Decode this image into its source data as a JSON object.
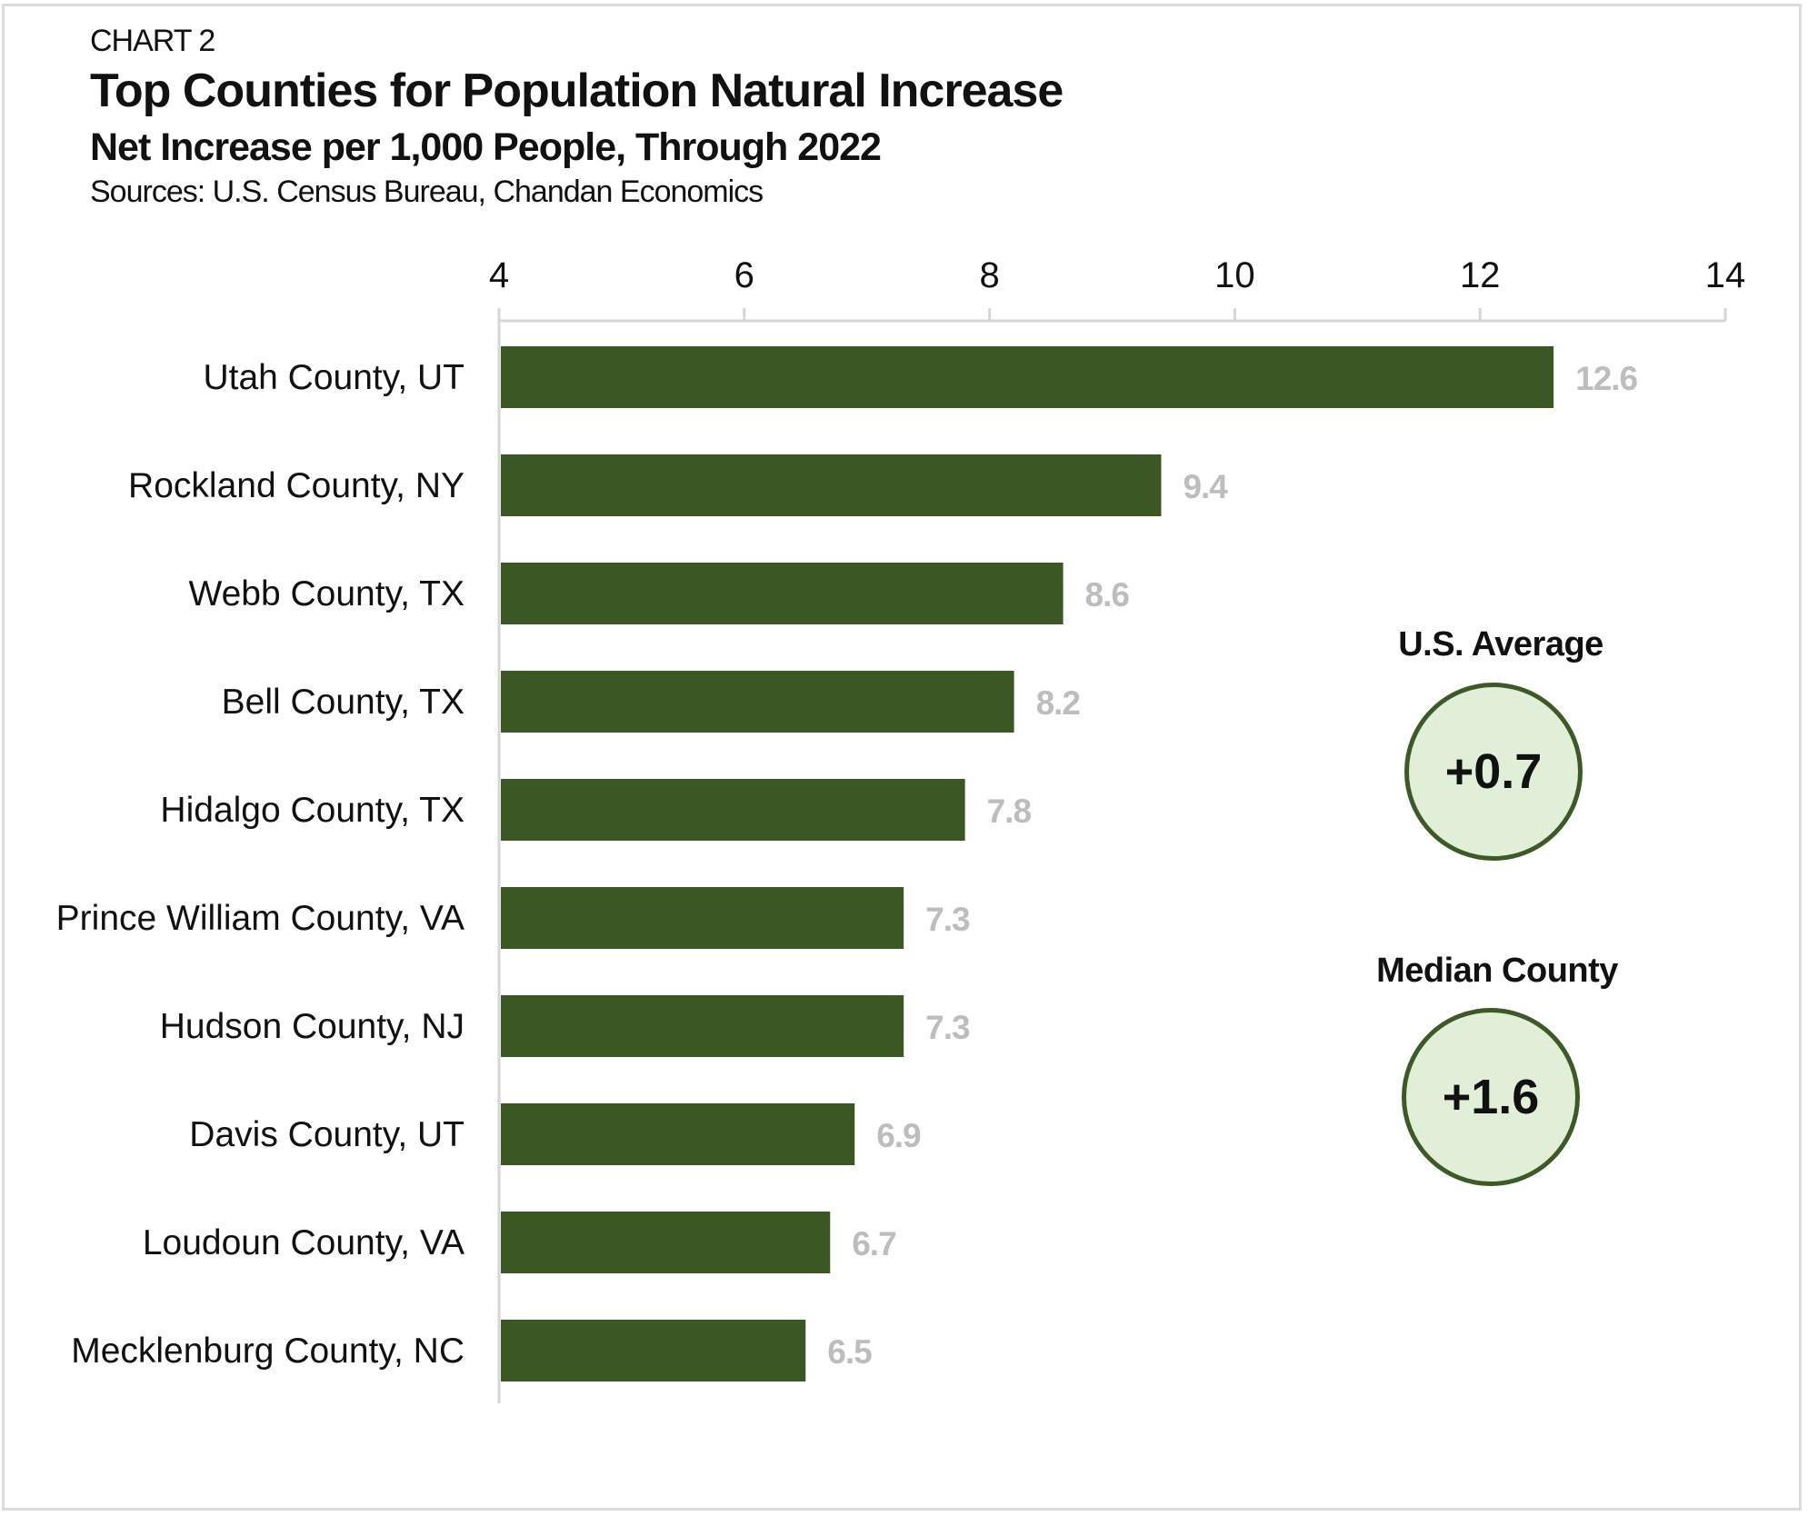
{
  "header": {
    "chart_label": "CHART 2",
    "title": "Top Counties for Population Natural Increase",
    "subtitle": "Net Increase per 1,000 People, Through 2022",
    "sources": "Sources: U.S. Census Bureau, Chandan Economics"
  },
  "callouts": [
    {
      "label": "U.S. Average",
      "value": "+0.7"
    },
    {
      "label": "Median County",
      "value": "+1.6"
    }
  ],
  "colors": {
    "bar": "#3b5724",
    "value_label": "#bdbdbd",
    "circle_fill": "#e1eed8",
    "circle_stroke": "#3b5a26",
    "axis": "#d6d6d6"
  },
  "chart_data": {
    "type": "bar",
    "orientation": "horizontal",
    "title": "Top Counties for Population Natural Increase",
    "subtitle": "Net Increase per 1,000 People, Through 2022",
    "categories": [
      "Utah County, UT",
      "Rockland County, NY",
      "Webb County, TX",
      "Bell County, TX",
      "Hidalgo County, TX",
      "Prince William County, VA",
      "Hudson County, NJ",
      "Davis County, UT",
      "Loudoun County, VA",
      "Mecklenburg County, NC"
    ],
    "values": [
      12.6,
      9.4,
      8.6,
      8.2,
      7.8,
      7.3,
      7.3,
      6.9,
      6.7,
      6.5
    ],
    "data_labels": [
      "12.6",
      "9.4",
      "8.6",
      "8.2",
      "7.8",
      "7.3",
      "7.3",
      "6.9",
      "6.7",
      "6.5"
    ],
    "xlim": [
      4,
      14
    ],
    "x_ticks": [
      "4",
      "6",
      "8",
      "10",
      "12",
      "14"
    ],
    "axis_position": "top",
    "grid": false,
    "legend": "none"
  }
}
